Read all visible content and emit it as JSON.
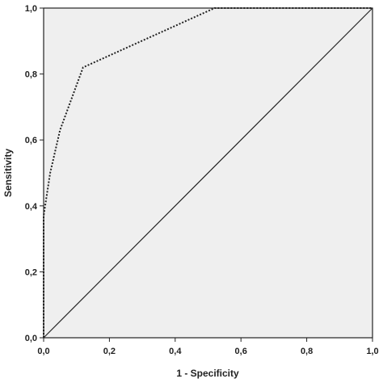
{
  "chart_data": {
    "type": "line",
    "xlabel": "1 - Specificity",
    "ylabel": "Sensitivity",
    "xlim": [
      0,
      1
    ],
    "ylim": [
      0,
      1
    ],
    "x_ticks": [
      "0,0",
      "0,2",
      "0,4",
      "0,6",
      "0,8",
      "1,0"
    ],
    "y_ticks": [
      "0,0",
      "0,2",
      "0,4",
      "0,6",
      "0,8",
      "1,0"
    ],
    "grid": false,
    "plot_background": "#efefef",
    "series": [
      {
        "style": "dotted",
        "color": "#222222",
        "x": [
          0.0,
          0.0,
          0.02,
          0.05,
          0.12,
          0.52,
          1.0
        ],
        "y": [
          0.0,
          0.37,
          0.5,
          0.63,
          0.82,
          1.0,
          1.0
        ]
      },
      {
        "style": "solid",
        "color": "#222222",
        "x": [
          0.0,
          1.0
        ],
        "y": [
          0.0,
          1.0
        ]
      }
    ]
  }
}
